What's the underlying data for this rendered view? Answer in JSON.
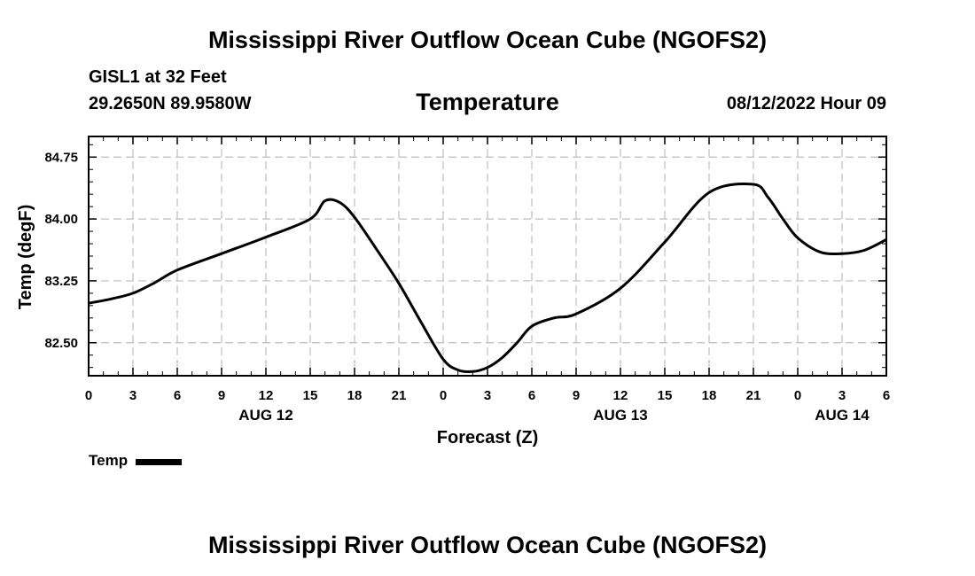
{
  "header": {
    "title": "Mississippi River Outflow Ocean Cube (NGOFS2)",
    "station_name": "GISL1 at 32 Feet",
    "station_coords": "29.2650N  89.9580W",
    "datetime": "08/12/2022 Hour 09"
  },
  "footer": {
    "title": "Mississippi River Outflow Ocean Cube (NGOFS2)"
  },
  "legend": {
    "label": "Temp",
    "color": "#000000"
  },
  "chart_data": {
    "type": "line",
    "title": "Temperature",
    "xlabel": "Forecast (Z)",
    "ylabel": "Temp (degF)",
    "xlim": [
      0,
      54
    ],
    "ylim": [
      82.1,
      85.0
    ],
    "x_ticks": [
      0,
      3,
      6,
      9,
      12,
      15,
      18,
      21,
      24,
      27,
      30,
      33,
      36,
      39,
      42,
      45,
      48,
      51,
      54
    ],
    "x_tick_labels": [
      "0",
      "3",
      "6",
      "9",
      "12",
      "15",
      "18",
      "21",
      "0",
      "3",
      "6",
      "9",
      "12",
      "15",
      "18",
      "21",
      "0",
      "3",
      "6"
    ],
    "x_minor_step": 1,
    "y_ticks": [
      82.5,
      83.25,
      84.0,
      84.75
    ],
    "y_tick_labels": [
      "82.50",
      "83.25",
      "84.00",
      "84.75"
    ],
    "y_minor_step": 0.15,
    "date_labels": [
      {
        "x": 12,
        "label": "AUG 12"
      },
      {
        "x": 36,
        "label": "AUG 13"
      },
      {
        "x": 51,
        "label": "AUG 14"
      }
    ],
    "grid": true,
    "series": [
      {
        "name": "Temp",
        "color": "#000000",
        "x": [
          0,
          1.5,
          3,
          4.5,
          6,
          9,
          12,
          15,
          16,
          17,
          18,
          19.5,
          21,
          22.5,
          24,
          25,
          26,
          27,
          28,
          29,
          30,
          31.5,
          33,
          36,
          39,
          42,
          45,
          46,
          47,
          48,
          49.5,
          51,
          52.5,
          54
        ],
        "values": [
          82.98,
          83.03,
          83.1,
          83.23,
          83.38,
          83.58,
          83.78,
          84.0,
          84.22,
          84.2,
          84.02,
          83.63,
          83.22,
          82.75,
          82.3,
          82.17,
          82.15,
          82.2,
          82.32,
          82.5,
          82.7,
          82.8,
          82.85,
          83.16,
          83.72,
          84.32,
          84.42,
          84.26,
          84.0,
          83.77,
          83.6,
          83.58,
          83.62,
          83.75
        ]
      }
    ]
  }
}
